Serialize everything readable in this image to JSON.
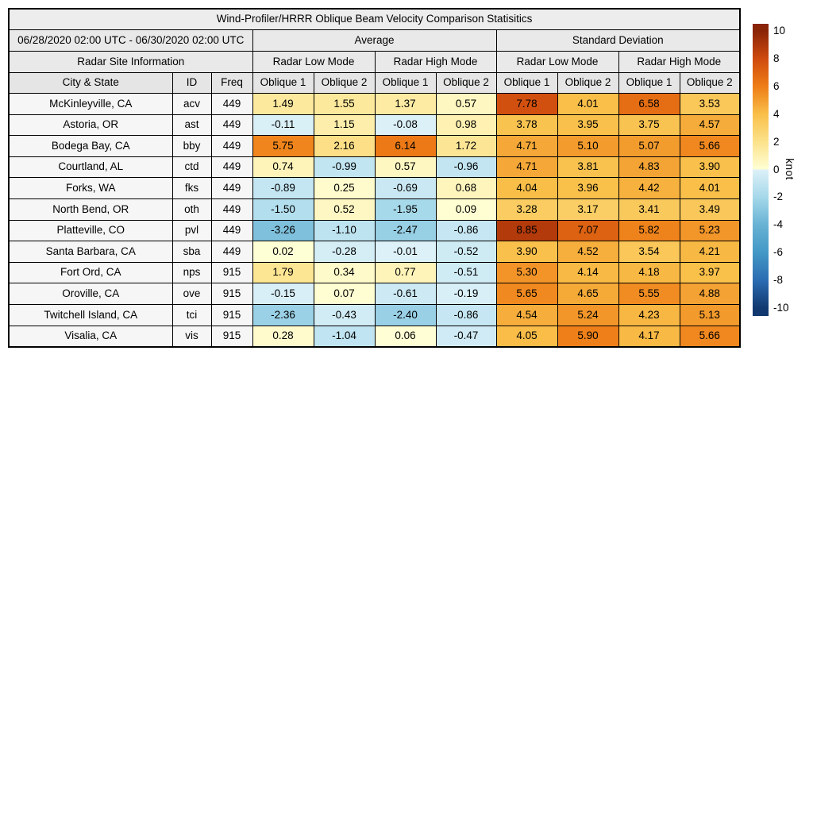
{
  "title": "Wind-Profiler/HRRR Oblique Beam Velocity Comparison Statisitics",
  "table": {
    "date_range": "06/28/2020 02:00 UTC - 06/30/2020 02:00 UTC",
    "sections": [
      "Average",
      "Standard Deviation"
    ],
    "site_info_label": "Radar Site Information",
    "mode_labels": [
      "Radar Low Mode",
      "Radar High Mode",
      "Radar Low Mode",
      "Radar High Mode"
    ],
    "columns": [
      "City & State",
      "ID",
      "Freq",
      "Oblique 1",
      "Oblique 2",
      "Oblique 1",
      "Oblique 2",
      "Oblique 1",
      "Oblique 2",
      "Oblique 1",
      "Oblique 2"
    ],
    "rows": [
      {
        "city": "McKinleyville, CA",
        "id": "acv",
        "freq": "449",
        "values": [
          "1.49",
          "1.55",
          "1.37",
          "0.57",
          "7.78",
          "4.01",
          "6.58",
          "3.53"
        ]
      },
      {
        "city": "Astoria, OR",
        "id": "ast",
        "freq": "449",
        "values": [
          "-0.11",
          "1.15",
          "-0.08",
          "0.98",
          "3.78",
          "3.95",
          "3.75",
          "4.57"
        ]
      },
      {
        "city": "Bodega Bay, CA",
        "id": "bby",
        "freq": "449",
        "values": [
          "5.75",
          "2.16",
          "6.14",
          "1.72",
          "4.71",
          "5.10",
          "5.07",
          "5.66"
        ]
      },
      {
        "city": "Courtland, AL",
        "id": "ctd",
        "freq": "449",
        "values": [
          "0.74",
          "-0.99",
          "0.57",
          "-0.96",
          "4.71",
          "3.81",
          "4.83",
          "3.90"
        ]
      },
      {
        "city": "Forks, WA",
        "id": "fks",
        "freq": "449",
        "values": [
          "-0.89",
          "0.25",
          "-0.69",
          "0.68",
          "4.04",
          "3.96",
          "4.42",
          "4.01"
        ]
      },
      {
        "city": "North Bend, OR",
        "id": "oth",
        "freq": "449",
        "values": [
          "-1.50",
          "0.52",
          "-1.95",
          "0.09",
          "3.28",
          "3.17",
          "3.41",
          "3.49"
        ]
      },
      {
        "city": "Platteville, CO",
        "id": "pvl",
        "freq": "449",
        "values": [
          "-3.26",
          "-1.10",
          "-2.47",
          "-0.86",
          "8.85",
          "7.07",
          "5.82",
          "5.23"
        ]
      },
      {
        "city": "Santa Barbara, CA",
        "id": "sba",
        "freq": "449",
        "values": [
          "0.02",
          "-0.28",
          "-0.01",
          "-0.52",
          "3.90",
          "4.52",
          "3.54",
          "4.21"
        ]
      },
      {
        "city": "Fort Ord, CA",
        "id": "nps",
        "freq": "915",
        "values": [
          "1.79",
          "0.34",
          "0.77",
          "-0.51",
          "5.30",
          "4.14",
          "4.18",
          "3.97"
        ]
      },
      {
        "city": "Oroville, CA",
        "id": "ove",
        "freq": "915",
        "values": [
          "-0.15",
          "0.07",
          "-0.61",
          "-0.19",
          "5.65",
          "4.65",
          "5.55",
          "4.88"
        ]
      },
      {
        "city": "Twitchell Island, CA",
        "id": "tci",
        "freq": "915",
        "values": [
          "-2.36",
          "-0.43",
          "-2.40",
          "-0.86",
          "4.54",
          "5.24",
          "4.23",
          "5.13"
        ]
      },
      {
        "city": "Visalia, CA",
        "id": "vis",
        "freq": "915",
        "values": [
          "0.28",
          "-1.04",
          "0.06",
          "-0.47",
          "4.05",
          "5.90",
          "4.17",
          "5.66"
        ]
      }
    ]
  },
  "colorbar": {
    "label": "knot",
    "ticks": [
      "10",
      "8",
      "6",
      "4",
      "2",
      "0",
      "-2",
      "-4",
      "-6",
      "-8",
      "-10"
    ],
    "vmin": -10,
    "vmax": 10,
    "positive_stops": [
      [
        0,
        "#ffffd6"
      ],
      [
        2,
        "#fce28b"
      ],
      [
        4,
        "#f9bf49"
      ],
      [
        6,
        "#ee7d16"
      ],
      [
        8,
        "#cf4a0e"
      ],
      [
        10,
        "#8a2407"
      ]
    ],
    "negative_stops": [
      [
        0,
        "#ddf1f8"
      ],
      [
        2,
        "#a5d8ea"
      ],
      [
        4,
        "#68b2d4"
      ],
      [
        6,
        "#4398c6"
      ],
      [
        8,
        "#2b6cb2"
      ],
      [
        10,
        "#11396f"
      ]
    ]
  },
  "chart_data": {
    "type": "table",
    "title": "Wind-Profiler/HRRR Oblique Beam Velocity Comparison Statisitics",
    "subtitle": "06/28/2020 02:00 UTC - 06/30/2020 02:00 UTC",
    "column_groups": [
      {
        "group": "Radar Site Information",
        "columns": [
          "City & State",
          "ID",
          "Freq"
        ]
      },
      {
        "group": "Average / Radar Low Mode",
        "columns": [
          "Oblique 1",
          "Oblique 2"
        ]
      },
      {
        "group": "Average / Radar High Mode",
        "columns": [
          "Oblique 1",
          "Oblique 2"
        ]
      },
      {
        "group": "Standard Deviation / Radar Low Mode",
        "columns": [
          "Oblique 1",
          "Oblique 2"
        ]
      },
      {
        "group": "Standard Deviation / Radar High Mode",
        "columns": [
          "Oblique 1",
          "Oblique 2"
        ]
      }
    ],
    "unit": "knot",
    "color_scale": {
      "type": "diverging",
      "range": [
        -10,
        10
      ]
    },
    "rows": [
      [
        "McKinleyville, CA",
        "acv",
        449,
        1.49,
        1.55,
        1.37,
        0.57,
        7.78,
        4.01,
        6.58,
        3.53
      ],
      [
        "Astoria, OR",
        "ast",
        449,
        -0.11,
        1.15,
        -0.08,
        0.98,
        3.78,
        3.95,
        3.75,
        4.57
      ],
      [
        "Bodega Bay, CA",
        "bby",
        449,
        5.75,
        2.16,
        6.14,
        1.72,
        4.71,
        5.1,
        5.07,
        5.66
      ],
      [
        "Courtland, AL",
        "ctd",
        449,
        0.74,
        -0.99,
        0.57,
        -0.96,
        4.71,
        3.81,
        4.83,
        3.9
      ],
      [
        "Forks, WA",
        "fks",
        449,
        -0.89,
        0.25,
        -0.69,
        0.68,
        4.04,
        3.96,
        4.42,
        4.01
      ],
      [
        "North Bend, OR",
        "oth",
        449,
        -1.5,
        0.52,
        -1.95,
        0.09,
        3.28,
        3.17,
        3.41,
        3.49
      ],
      [
        "Platteville, CO",
        "pvl",
        449,
        -3.26,
        -1.1,
        -2.47,
        -0.86,
        8.85,
        7.07,
        5.82,
        5.23
      ],
      [
        "Santa Barbara, CA",
        "sba",
        449,
        0.02,
        -0.28,
        -0.01,
        -0.52,
        3.9,
        4.52,
        3.54,
        4.21
      ],
      [
        "Fort Ord, CA",
        "nps",
        915,
        1.79,
        0.34,
        0.77,
        -0.51,
        5.3,
        4.14,
        4.18,
        3.97
      ],
      [
        "Oroville, CA",
        "ove",
        915,
        -0.15,
        0.07,
        -0.61,
        -0.19,
        5.65,
        4.65,
        5.55,
        4.88
      ],
      [
        "Twitchell Island, CA",
        "tci",
        915,
        -2.36,
        -0.43,
        -2.4,
        -0.86,
        4.54,
        5.24,
        4.23,
        5.13
      ],
      [
        "Visalia, CA",
        "vis",
        915,
        0.28,
        -1.04,
        0.06,
        -0.47,
        4.05,
        5.9,
        4.17,
        5.66
      ]
    ]
  }
}
